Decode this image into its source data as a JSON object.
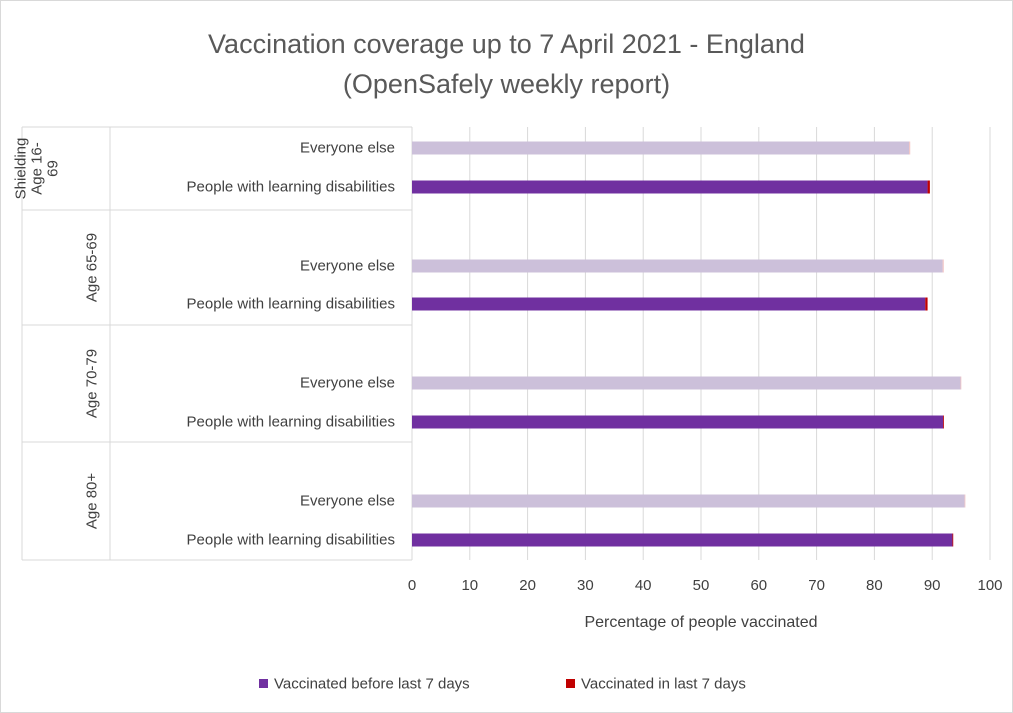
{
  "chart_data": {
    "type": "bar",
    "orientation": "horizontal",
    "stacked": true,
    "title_lines": [
      "Vaccination coverage up to 7 April 2021 - England",
      "(OpenSafely weekly report)"
    ],
    "xlabel": "Percentage of people vaccinated",
    "xlim": [
      0,
      100
    ],
    "xticks": [
      "0",
      "10",
      "20",
      "30",
      "40",
      "50",
      "60",
      "70",
      "80",
      "90",
      "100"
    ],
    "grid": "vertical",
    "legend_position": "bottom",
    "groups": [
      {
        "label_lines": [
          "Shielding",
          "Age 16-",
          "69"
        ],
        "rows": [
          {
            "category": "Everyone else",
            "before": 86.0,
            "last7": 0.2,
            "shade": "light"
          },
          {
            "category": "People with learning disabilities",
            "before": 89.2,
            "last7": 0.4,
            "shade": "dark"
          }
        ]
      },
      {
        "label_lines": [
          "Age 65-69"
        ],
        "rows": [
          {
            "category": "Everyone else",
            "before": 91.8,
            "last7": 0.2,
            "shade": "light"
          },
          {
            "category": "People with learning disabilities",
            "before": 88.8,
            "last7": 0.4,
            "shade": "dark"
          }
        ]
      },
      {
        "label_lines": [
          "Age 70-79"
        ],
        "rows": [
          {
            "category": "Everyone else",
            "before": 94.9,
            "last7": 0.1,
            "shade": "light"
          },
          {
            "category": "People with learning disabilities",
            "before": 91.9,
            "last7": 0.1,
            "shade": "dark"
          }
        ]
      },
      {
        "label_lines": [
          "Age 80+"
        ],
        "rows": [
          {
            "category": "Everyone else",
            "before": 95.6,
            "last7": 0.1,
            "shade": "light"
          },
          {
            "category": "People with learning disabilities",
            "before": 93.5,
            "last7": 0.1,
            "shade": "dark"
          }
        ]
      }
    ],
    "series": [
      {
        "name": "Vaccinated before last 7 days",
        "color": "#7030a0",
        "light_color": "#ccc0da"
      },
      {
        "name": "Vaccinated in last 7 days",
        "color": "#c00000",
        "light_color": "#f2c4c4"
      }
    ]
  }
}
